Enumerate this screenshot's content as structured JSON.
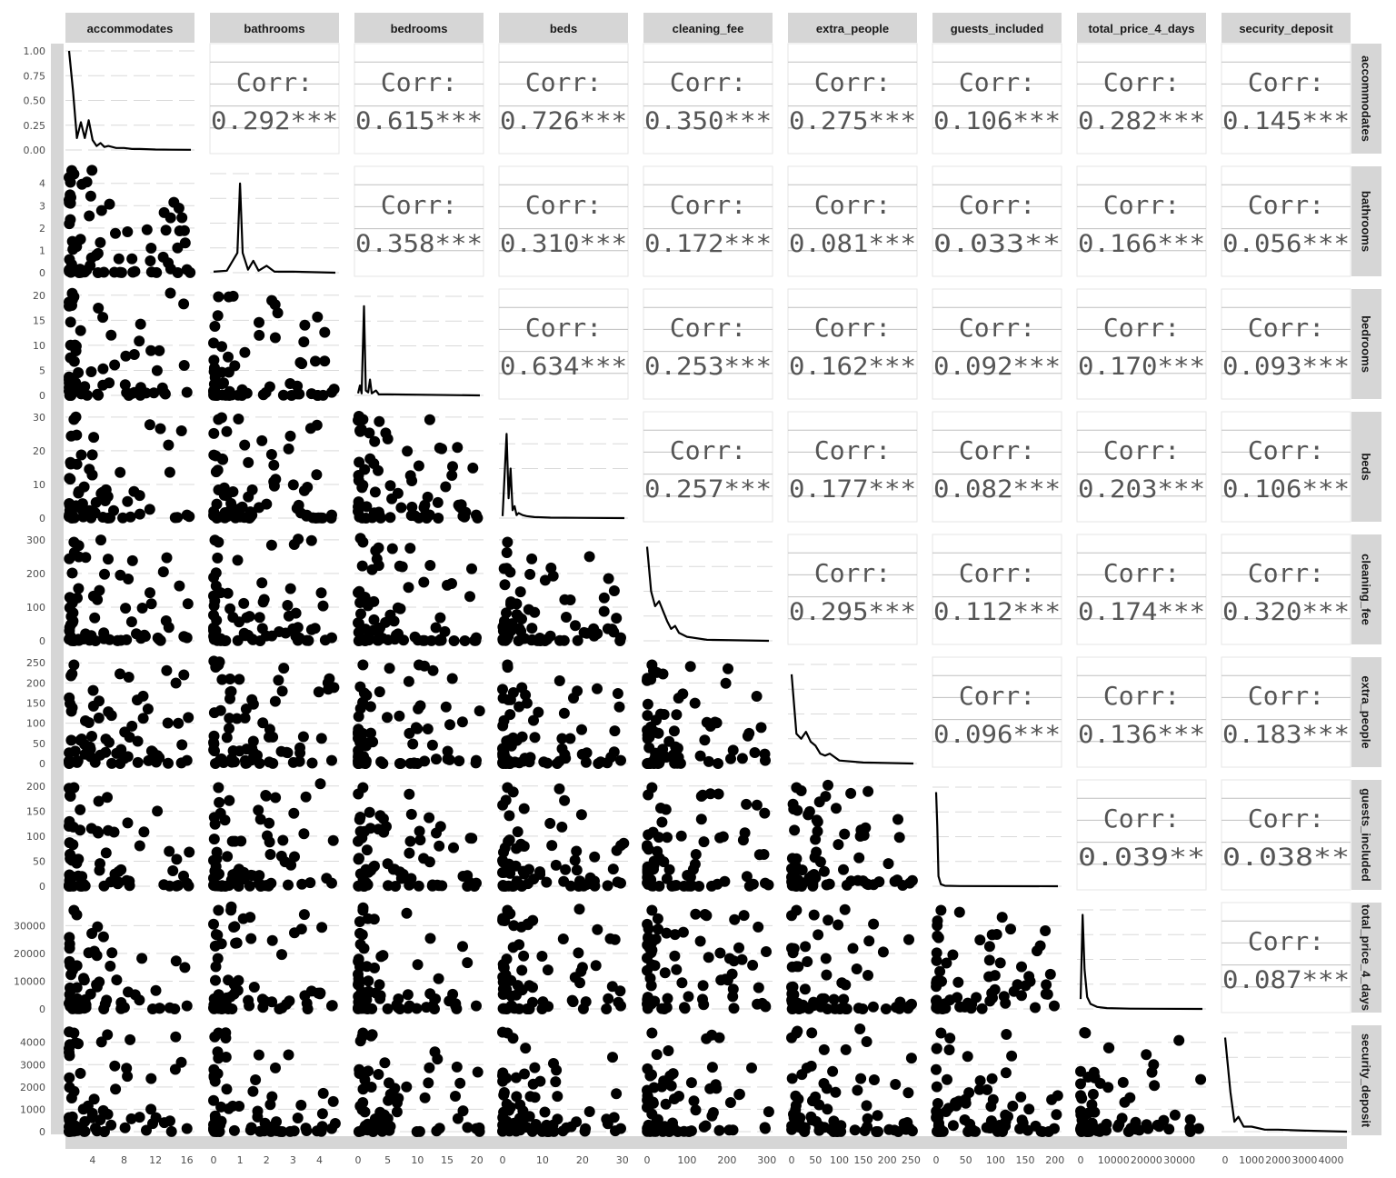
{
  "chart_data": {
    "type": "pairs-matrix",
    "variables": [
      "accommodates",
      "bathrooms",
      "bedrooms",
      "beds",
      "cleaning_fee",
      "extra_people",
      "guests_included",
      "total_price_4_days",
      "security_deposit"
    ],
    "corr_label": "Corr:",
    "correlations": {
      "0-1": "0.292***",
      "0-2": "0.615***",
      "0-3": "0.726***",
      "0-4": "0.350***",
      "0-5": "0.275***",
      "0-6": "0.106***",
      "0-7": "0.282***",
      "0-8": "0.145***",
      "1-2": "0.358***",
      "1-3": "0.310***",
      "1-4": "0.172***",
      "1-5": "0.081***",
      "1-6": "0.033**",
      "1-7": "0.166***",
      "1-8": "0.056***",
      "2-3": "0.634***",
      "2-4": "0.253***",
      "2-5": "0.162***",
      "2-6": "0.092***",
      "2-7": "0.170***",
      "2-8": "0.093***",
      "3-4": "0.257***",
      "3-5": "0.177***",
      "3-6": "0.082***",
      "3-7": "0.203***",
      "3-8": "0.106***",
      "4-5": "0.295***",
      "4-6": "0.112***",
      "4-7": "0.174***",
      "4-8": "0.320***",
      "5-6": "0.096***",
      "5-7": "0.136***",
      "5-8": "0.183***",
      "6-7": "0.039**",
      "6-8": "0.038**",
      "7-8": "0.087***"
    },
    "x_ticks": [
      [
        "4",
        "8",
        "12",
        "16"
      ],
      [
        "0",
        "1",
        "2",
        "3",
        "4"
      ],
      [
        "0",
        "5",
        "10",
        "15",
        "20"
      ],
      [
        "0",
        "10",
        "20",
        "30"
      ],
      [
        "0",
        "100",
        "200",
        "300"
      ],
      [
        "0",
        "50",
        "100",
        "150",
        "200",
        "250"
      ],
      [
        "0",
        "50",
        "100",
        "150",
        "200"
      ],
      [
        "0",
        "10000",
        "20000",
        "30000"
      ],
      [
        "0",
        "1000",
        "2000",
        "3000",
        "4000"
      ]
    ],
    "x_tick_values": [
      [
        4,
        8,
        12,
        16
      ],
      [
        0,
        1,
        2,
        3,
        4
      ],
      [
        0,
        5,
        10,
        15,
        20
      ],
      [
        0,
        10,
        20,
        30
      ],
      [
        0,
        100,
        200,
        300
      ],
      [
        0,
        50,
        100,
        150,
        200,
        250
      ],
      [
        0,
        50,
        100,
        150,
        200
      ],
      [
        0,
        10000,
        20000,
        30000
      ],
      [
        0,
        1000,
        2000,
        3000,
        4000
      ]
    ],
    "y_ticks": [
      [
        "0.00",
        "0.25",
        "0.50",
        "0.75",
        "1.00"
      ],
      [
        "0",
        "1",
        "2",
        "3",
        "4"
      ],
      [
        "0",
        "5",
        "10",
        "15",
        "20"
      ],
      [
        "0",
        "10",
        "20",
        "30"
      ],
      [
        "0",
        "100",
        "200",
        "300"
      ],
      [
        "0",
        "50",
        "100",
        "150",
        "200",
        "250"
      ],
      [
        "0",
        "50",
        "100",
        "150",
        "200"
      ],
      [
        "0",
        "10000",
        "20000",
        "30000"
      ],
      [
        "0",
        "1000",
        "2000",
        "3000",
        "4000"
      ]
    ],
    "y_tick_values": [
      [
        0,
        0.25,
        0.5,
        0.75,
        1.0
      ],
      [
        0,
        1,
        2,
        3,
        4
      ],
      [
        0,
        5,
        10,
        15,
        20
      ],
      [
        0,
        10,
        20,
        30
      ],
      [
        0,
        100,
        200,
        300
      ],
      [
        0,
        50,
        100,
        150,
        200,
        250
      ],
      [
        0,
        50,
        100,
        150,
        200
      ],
      [
        0,
        10000,
        20000,
        30000
      ],
      [
        0,
        1000,
        2000,
        3000,
        4000
      ]
    ],
    "ranges": [
      [
        1,
        16.5
      ],
      [
        0,
        4.6
      ],
      [
        0,
        20.5
      ],
      [
        0,
        30.5
      ],
      [
        0,
        305
      ],
      [
        0,
        255
      ],
      [
        0,
        205
      ],
      [
        0,
        37000
      ],
      [
        0,
        4600
      ]
    ],
    "density_ylim": [
      0,
      1.0
    ],
    "density_curves": [
      [
        [
          1,
          1.0
        ],
        [
          1.5,
          0.6
        ],
        [
          2,
          0.12
        ],
        [
          2.5,
          0.28
        ],
        [
          3,
          0.12
        ],
        [
          3.5,
          0.3
        ],
        [
          4,
          0.1
        ],
        [
          4.5,
          0.04
        ],
        [
          5,
          0.07
        ],
        [
          5.5,
          0.03
        ],
        [
          6,
          0.04
        ],
        [
          7,
          0.02
        ],
        [
          8,
          0.02
        ],
        [
          9,
          0.01
        ],
        [
          10,
          0.01
        ],
        [
          12,
          0.005
        ],
        [
          14,
          0.003
        ],
        [
          16.5,
          0.002
        ]
      ],
      [
        [
          0,
          0.01
        ],
        [
          0.5,
          0.02
        ],
        [
          0.9,
          0.2
        ],
        [
          1,
          0.9
        ],
        [
          1.1,
          0.2
        ],
        [
          1.3,
          0.03
        ],
        [
          1.5,
          0.12
        ],
        [
          1.7,
          0.02
        ],
        [
          2,
          0.07
        ],
        [
          2.3,
          0.01
        ],
        [
          3,
          0.01
        ],
        [
          4.6,
          0
        ]
      ],
      [
        [
          0,
          0.02
        ],
        [
          0.3,
          0.1
        ],
        [
          0.6,
          0.02
        ],
        [
          1,
          0.9
        ],
        [
          1.3,
          0.05
        ],
        [
          1.7,
          0.03
        ],
        [
          2,
          0.16
        ],
        [
          2.3,
          0.02
        ],
        [
          3,
          0.05
        ],
        [
          3.5,
          0.01
        ],
        [
          5,
          0.01
        ],
        [
          20.5,
          0
        ]
      ],
      [
        [
          0,
          0.02
        ],
        [
          1,
          0.85
        ],
        [
          1.5,
          0.2
        ],
        [
          2,
          0.5
        ],
        [
          2.5,
          0.08
        ],
        [
          3,
          0.12
        ],
        [
          3.5,
          0.03
        ],
        [
          4,
          0.05
        ],
        [
          5,
          0.03
        ],
        [
          6,
          0.02
        ],
        [
          8,
          0.01
        ],
        [
          12,
          0.005
        ],
        [
          30.5,
          0
        ]
      ],
      [
        [
          0,
          0.95
        ],
        [
          10,
          0.5
        ],
        [
          20,
          0.35
        ],
        [
          30,
          0.4
        ],
        [
          40,
          0.3
        ],
        [
          50,
          0.2
        ],
        [
          60,
          0.12
        ],
        [
          70,
          0.15
        ],
        [
          80,
          0.08
        ],
        [
          100,
          0.04
        ],
        [
          150,
          0.01
        ],
        [
          305,
          0
        ]
      ],
      [
        [
          0,
          0.9
        ],
        [
          10,
          0.3
        ],
        [
          20,
          0.25
        ],
        [
          30,
          0.32
        ],
        [
          40,
          0.22
        ],
        [
          50,
          0.18
        ],
        [
          60,
          0.1
        ],
        [
          70,
          0.08
        ],
        [
          80,
          0.1
        ],
        [
          100,
          0.03
        ],
        [
          150,
          0.01
        ],
        [
          255,
          0
        ]
      ],
      [
        [
          0,
          0.95
        ],
        [
          2,
          0.6
        ],
        [
          4,
          0.1
        ],
        [
          8,
          0.02
        ],
        [
          15,
          0.005
        ],
        [
          40,
          0.002
        ],
        [
          205,
          0
        ]
      ],
      [
        [
          0,
          0.1
        ],
        [
          600,
          0.95
        ],
        [
          1200,
          0.4
        ],
        [
          2000,
          0.12
        ],
        [
          3000,
          0.05
        ],
        [
          5000,
          0.02
        ],
        [
          8000,
          0.008
        ],
        [
          15000,
          0.003
        ],
        [
          37000,
          0
        ]
      ],
      [
        [
          0,
          0.95
        ],
        [
          200,
          0.4
        ],
        [
          350,
          0.1
        ],
        [
          500,
          0.15
        ],
        [
          700,
          0.05
        ],
        [
          1000,
          0.05
        ],
        [
          1500,
          0.02
        ],
        [
          2000,
          0.02
        ],
        [
          3000,
          0.01
        ],
        [
          4600,
          0
        ]
      ]
    ]
  }
}
